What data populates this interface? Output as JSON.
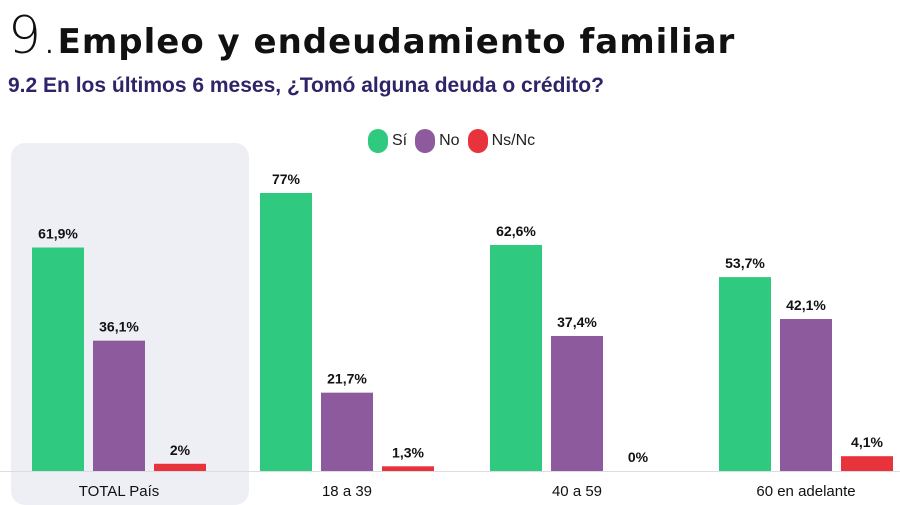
{
  "header": {
    "section_number": "9.",
    "section_title": "Empleo y endeudamiento familiar",
    "question": "9.2 En los últimos 6 meses, ¿Tomó alguna deuda o crédito?"
  },
  "colors": {
    "si": "#2fc97f",
    "no": "#8d5a9e",
    "nsnc": "#e8333c",
    "highlight": "#eeeef5"
  },
  "legend": [
    {
      "label": "Sí",
      "color": "#2fc97f",
      "icon": "green-pill-icon"
    },
    {
      "label": "No",
      "color": "#8d5a9e",
      "icon": "purple-pill-icon"
    },
    {
      "label": "Ns/Nc",
      "color": "#e8333c",
      "icon": "red-pill-icon"
    }
  ],
  "chart_data": {
    "type": "bar",
    "categories": [
      "TOTAL País",
      "18 a 39",
      "40 a 59",
      "60 en adelante"
    ],
    "series": [
      {
        "name": "Sí",
        "values": [
          61.9,
          77,
          62.6,
          53.7
        ],
        "labels": [
          "61,9%",
          "77%",
          "62,6%",
          "53,7%"
        ]
      },
      {
        "name": "No",
        "values": [
          36.1,
          21.7,
          37.4,
          42.1
        ],
        "labels": [
          "36,1%",
          "21,7%",
          "37,4%",
          "42,1%"
        ]
      },
      {
        "name": "Ns/Nc",
        "values": [
          2,
          1.3,
          0,
          4.1
        ],
        "labels": [
          "2%",
          "1,3%",
          "0%",
          "4,1%"
        ]
      }
    ],
    "ylim": [
      0,
      100
    ],
    "highlighted_category": "TOTAL País",
    "legend_position": "top-center",
    "grid": false
  }
}
